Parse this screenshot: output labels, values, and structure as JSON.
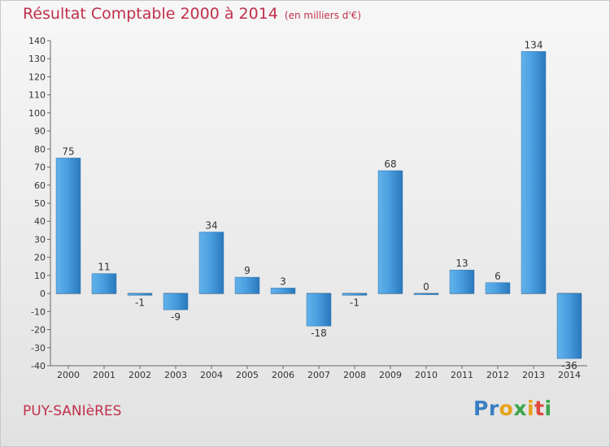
{
  "title": "Résultat Comptable 2000 à 2014",
  "unit_note": "(en milliers d'€)",
  "commune": "PUY-SANIèRES",
  "brand": {
    "letters": [
      "P",
      "r",
      "o",
      "x",
      "i",
      "t",
      "i"
    ],
    "colors": [
      "#3a7fc4",
      "#3a7fc4",
      "#e8a21a",
      "#3aa54a",
      "#e8a21a",
      "#e0483c",
      "#3aa54a"
    ]
  },
  "colors": {
    "bar": "#3a8fd6",
    "title": "#c0304a"
  },
  "chart_data": {
    "type": "bar",
    "title": "Résultat Comptable 2000 à 2014",
    "categories": [
      "2000",
      "2001",
      "2002",
      "2003",
      "2004",
      "2005",
      "2006",
      "2007",
      "2008",
      "2009",
      "2010",
      "2011",
      "2012",
      "2013",
      "2014"
    ],
    "values": [
      75,
      11,
      -1,
      -9,
      34,
      9,
      3,
      -18,
      -1,
      68,
      0,
      13,
      6,
      134,
      -36
    ],
    "value_labels": [
      "75",
      "11",
      "-1",
      "-9",
      "34",
      "9",
      "3",
      "-18",
      "-1",
      "68",
      "0",
      "13",
      "6",
      "134",
      "-36"
    ],
    "ylim": [
      -40,
      140
    ],
    "yticks": [
      -40,
      -30,
      -20,
      -10,
      0,
      10,
      20,
      30,
      40,
      50,
      60,
      70,
      80,
      90,
      100,
      110,
      120,
      130,
      140
    ],
    "grid": false,
    "legend": "none"
  }
}
